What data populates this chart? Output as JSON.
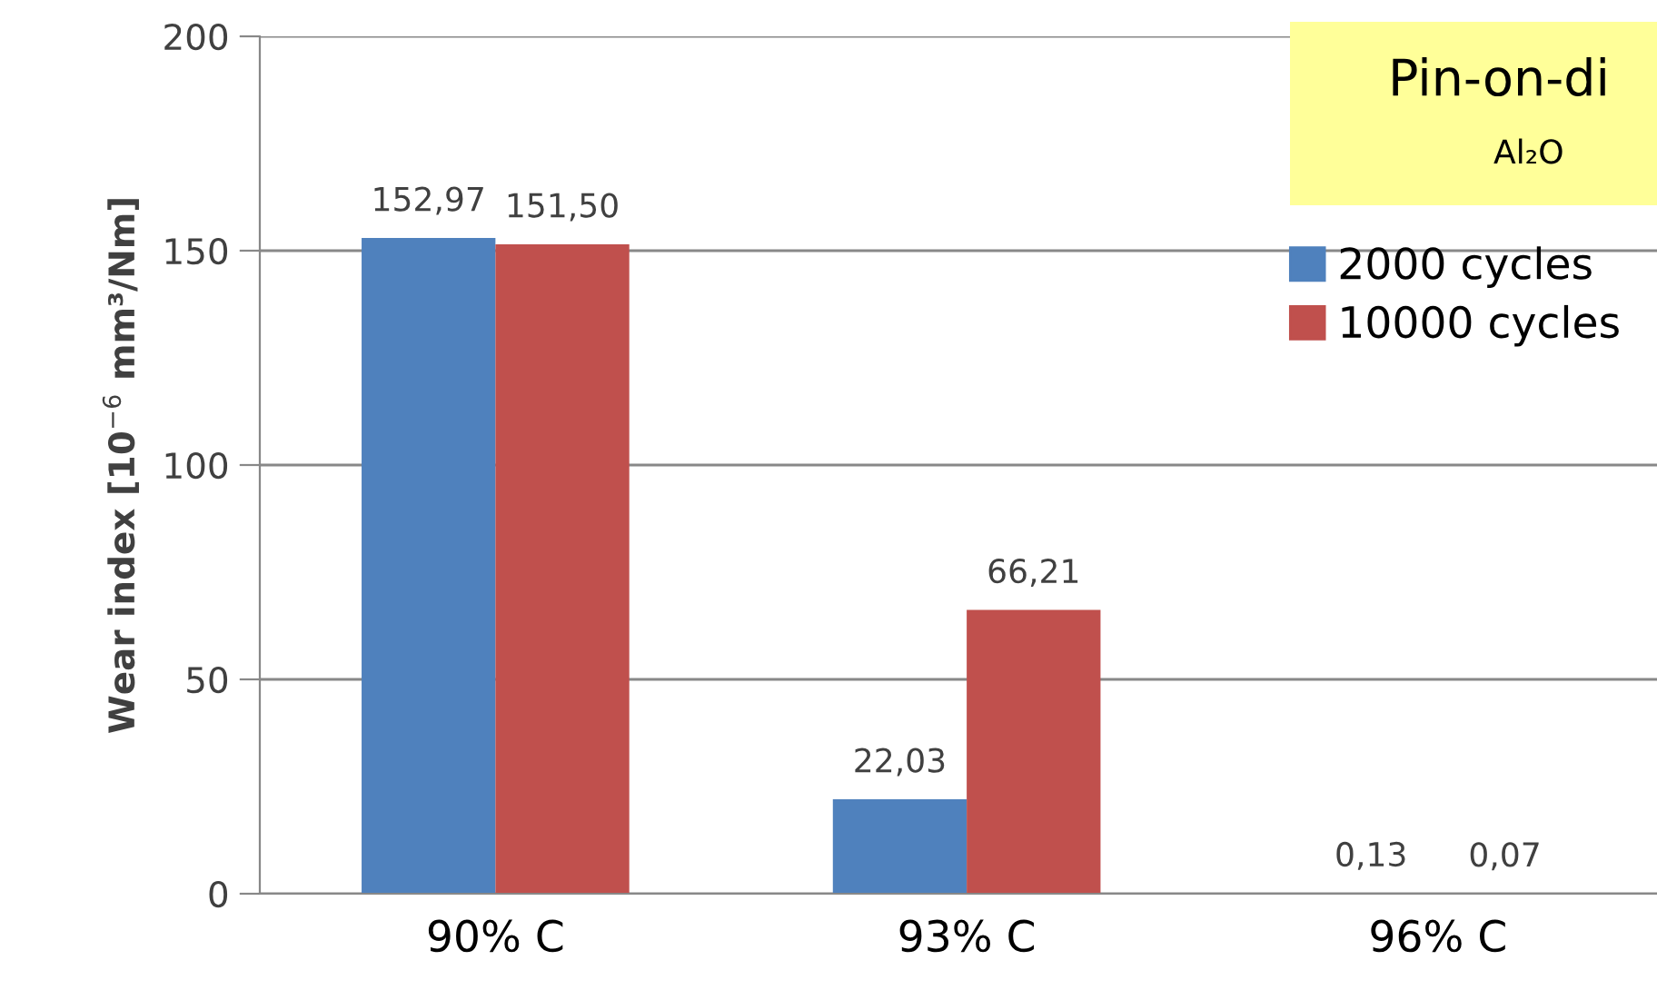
{
  "chart_data": {
    "type": "bar",
    "ylabel": "Wear index [10$^{−6}$ mm³/Nm]",
    "categories": [
      "90% C",
      "93% C",
      "96% C"
    ],
    "series": [
      {
        "name": "2000 cycles",
        "color": "#4f81bd",
        "values": [
          152.97,
          22.03,
          0.13
        ],
        "value_labels": [
          "152,97",
          "22,03",
          "0,13"
        ]
      },
      {
        "name": "10000 cycles",
        "color": "#c0504d",
        "values": [
          151.5,
          66.21,
          0.07
        ],
        "value_labels": [
          "151,50",
          "66,21",
          "0,07"
        ]
      }
    ],
    "ylim": [
      0,
      200
    ],
    "yticks": [
      0,
      50,
      100,
      150,
      200
    ],
    "grid": "y",
    "legend": "top right",
    "annotations": [
      "Pin-on-di",
      "Al₂O"
    ]
  }
}
